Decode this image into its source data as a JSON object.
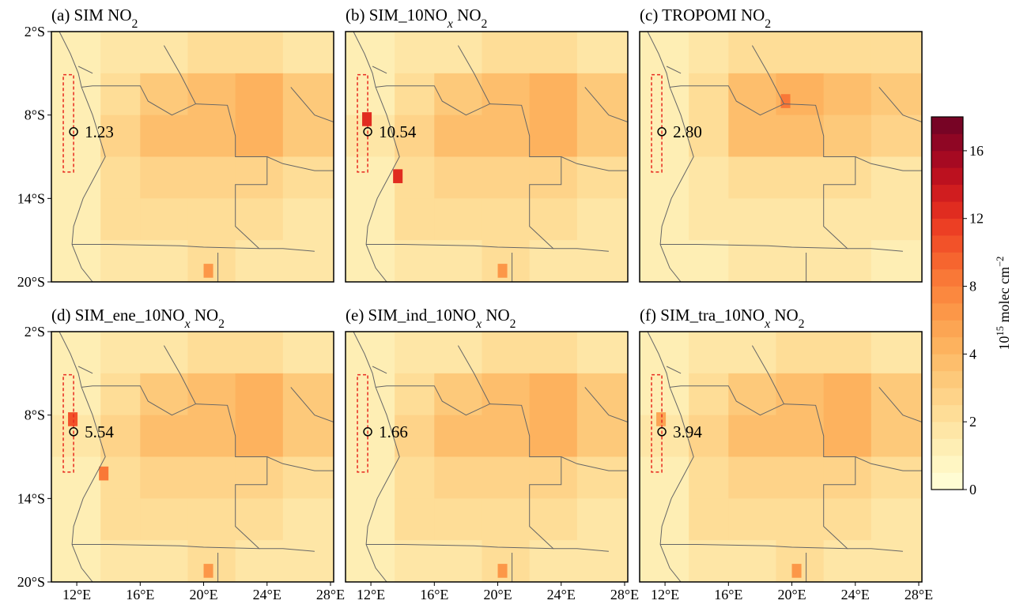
{
  "chart_data": {
    "type": "map",
    "xlim": [
      10.4,
      28.2
    ],
    "ylim": [
      -20,
      -2
    ],
    "xticks": [
      {
        "value": 12,
        "label": "12°E"
      },
      {
        "value": 16,
        "label": "16°E"
      },
      {
        "value": 20,
        "label": "20°E"
      },
      {
        "value": 24,
        "label": "24°E"
      },
      {
        "value": 28,
        "label": "28°E"
      }
    ],
    "yticks": [
      {
        "value": -2,
        "label": "2°S"
      },
      {
        "value": -8,
        "label": "8°S"
      },
      {
        "value": -14,
        "label": "14°S"
      },
      {
        "value": -20,
        "label": "20°S"
      }
    ],
    "lon_edges": [
      10.4,
      13.5,
      16,
      19,
      22,
      25,
      28.2
    ],
    "lat_edges": [
      -2,
      -5,
      -8,
      -11,
      -14,
      -17,
      -20
    ],
    "panels": [
      {
        "title": [
          {
            "text": "(a) SIM NO"
          },
          {
            "sub": "2"
          }
        ],
        "field": [
          [
            1.2,
            1.8,
            1.8,
            2,
            2,
            1.8
          ],
          [
            1.2,
            2.2,
            3,
            3.5,
            4,
            3.2
          ],
          [
            1.4,
            2.5,
            3.5,
            3.5,
            4,
            3
          ],
          [
            1.2,
            2.2,
            2.5,
            2.5,
            2.5,
            2.2
          ],
          [
            1.2,
            2,
            2,
            2.2,
            2,
            1.8
          ],
          [
            1.2,
            1.8,
            1.8,
            2,
            1.8,
            1.8
          ]
        ],
        "hotspots": [
          {
            "lon": 20.3,
            "lat": -19.2,
            "value": 6
          }
        ],
        "site": {
          "value": 1.23,
          "label": "1.23"
        }
      },
      {
        "title": [
          {
            "text": "(b) SIM_10NO"
          },
          {
            "sub": "x",
            "italic": true
          },
          {
            "text": " NO"
          },
          {
            "sub": "2"
          }
        ],
        "field": [
          [
            1.2,
            1.8,
            1.8,
            2,
            2,
            1.8
          ],
          [
            1.4,
            2.4,
            3,
            3.5,
            4,
            3.2
          ],
          [
            1.6,
            2.6,
            3.5,
            3.5,
            4,
            3
          ],
          [
            1.4,
            2.2,
            2.5,
            2.5,
            2.5,
            2.2
          ],
          [
            1.2,
            2,
            2,
            2.2,
            2,
            1.8
          ],
          [
            1.2,
            1.8,
            1.8,
            2,
            1.8,
            1.8
          ]
        ],
        "hotspots": [
          {
            "lon": 11.75,
            "lat": -8.3,
            "value": 12
          },
          {
            "lon": 13.7,
            "lat": -12.4,
            "value": 12
          },
          {
            "lon": 20.3,
            "lat": -19.2,
            "value": 6
          }
        ],
        "site": {
          "value": 10.54,
          "label": "10.54"
        }
      },
      {
        "title": [
          {
            "text": "(c) TROPOMI NO"
          },
          {
            "sub": "2"
          }
        ],
        "field": [
          [
            1.2,
            1.8,
            2,
            2.2,
            2.2,
            2
          ],
          [
            1.2,
            2,
            3.5,
            4,
            3.5,
            3
          ],
          [
            1.2,
            2,
            3.5,
            3.5,
            3,
            2.5
          ],
          [
            1,
            1.8,
            2,
            2,
            2,
            1.8
          ],
          [
            1,
            1.5,
            1.8,
            1.8,
            1.8,
            1.5
          ],
          [
            1,
            1.2,
            1.5,
            1.5,
            1.5,
            1.2
          ]
        ],
        "hotspots": [
          {
            "lon": 19.6,
            "lat": -7,
            "value": 8
          }
        ],
        "site": {
          "value": 2.8,
          "label": "2.80"
        }
      },
      {
        "title": [
          {
            "text": "(d) SIM_ene_10NO"
          },
          {
            "sub": "x",
            "italic": true
          },
          {
            "text": " NO"
          },
          {
            "sub": "2"
          }
        ],
        "field": [
          [
            1.2,
            1.8,
            1.8,
            2,
            2,
            1.8
          ],
          [
            1.3,
            2.3,
            3,
            3.5,
            4,
            3.2
          ],
          [
            1.5,
            2.5,
            3.5,
            3.5,
            4,
            3
          ],
          [
            1.3,
            2.2,
            2.5,
            2.5,
            2.5,
            2.2
          ],
          [
            1.2,
            2,
            2,
            2.2,
            2,
            1.8
          ],
          [
            1.2,
            1.8,
            1.8,
            2,
            1.8,
            1.8
          ]
        ],
        "hotspots": [
          {
            "lon": 11.75,
            "lat": -8.3,
            "value": 10
          },
          {
            "lon": 13.7,
            "lat": -12.2,
            "value": 8
          },
          {
            "lon": 20.3,
            "lat": -19.2,
            "value": 6
          }
        ],
        "site": {
          "value": 5.54,
          "label": "5.54"
        }
      },
      {
        "title": [
          {
            "text": "(e) SIM_ind_10NO"
          },
          {
            "sub": "x",
            "italic": true
          },
          {
            "text": " NO"
          },
          {
            "sub": "2"
          }
        ],
        "field": [
          [
            1.2,
            1.8,
            1.8,
            2,
            2,
            1.8
          ],
          [
            1.2,
            2.2,
            3,
            3.5,
            4,
            3.2
          ],
          [
            1.4,
            2.5,
            3.5,
            3.5,
            4,
            3
          ],
          [
            1.2,
            2.2,
            2.5,
            2.5,
            2.5,
            2.2
          ],
          [
            1.2,
            2,
            2,
            2.2,
            2,
            1.8
          ],
          [
            1.2,
            1.8,
            1.8,
            2,
            1.8,
            1.8
          ]
        ],
        "hotspots": [
          {
            "lon": 20.3,
            "lat": -19.2,
            "value": 6
          }
        ],
        "site": {
          "value": 1.66,
          "label": "1.66"
        }
      },
      {
        "title": [
          {
            "text": "(f) SIM_tra_10NO"
          },
          {
            "sub": "x",
            "italic": true
          },
          {
            "text": " NO"
          },
          {
            "sub": "2"
          }
        ],
        "field": [
          [
            1.2,
            1.8,
            1.8,
            2,
            2,
            1.8
          ],
          [
            1.3,
            2.3,
            3,
            3.5,
            4,
            3.2
          ],
          [
            1.5,
            2.5,
            3.5,
            3.5,
            4,
            3
          ],
          [
            1.3,
            2.2,
            2.5,
            2.5,
            2.5,
            2.2
          ],
          [
            1.2,
            2,
            2,
            2.2,
            2,
            1.8
          ],
          [
            1.2,
            1.8,
            1.8,
            2,
            1.8,
            1.8
          ]
        ],
        "hotspots": [
          {
            "lon": 11.75,
            "lat": -8.3,
            "value": 5
          },
          {
            "lon": 20.3,
            "lat": -19.2,
            "value": 6
          }
        ],
        "site": {
          "value": 3.94,
          "label": "3.94"
        }
      }
    ],
    "colorbar": {
      "bounds": [
        0,
        0.5,
        1,
        1.5,
        2,
        2.5,
        3,
        3.5,
        4,
        5,
        6,
        7,
        8,
        9,
        10,
        11,
        12,
        13,
        14,
        15,
        16,
        17,
        18
      ],
      "colors": [
        "#fffcd3",
        "#fff6c3",
        "#feeeb4",
        "#fee6a6",
        "#fedd97",
        "#fed389",
        "#fdc97a",
        "#fdbe6c",
        "#fdb25e",
        "#fca553",
        "#fc9748",
        "#fb883f",
        "#f97837",
        "#f6652f",
        "#f25229",
        "#ec3f24",
        "#e02c20",
        "#d01d1f",
        "#bc111f",
        "#a60a22",
        "#8f0624",
        "#770425"
      ],
      "ticks": [
        0,
        2,
        4,
        8,
        12,
        16
      ],
      "label": [
        {
          "text": "10"
        },
        {
          "sup": "15"
        },
        {
          "text": " molec cm"
        },
        {
          "sup": "−2"
        }
      ]
    }
  }
}
